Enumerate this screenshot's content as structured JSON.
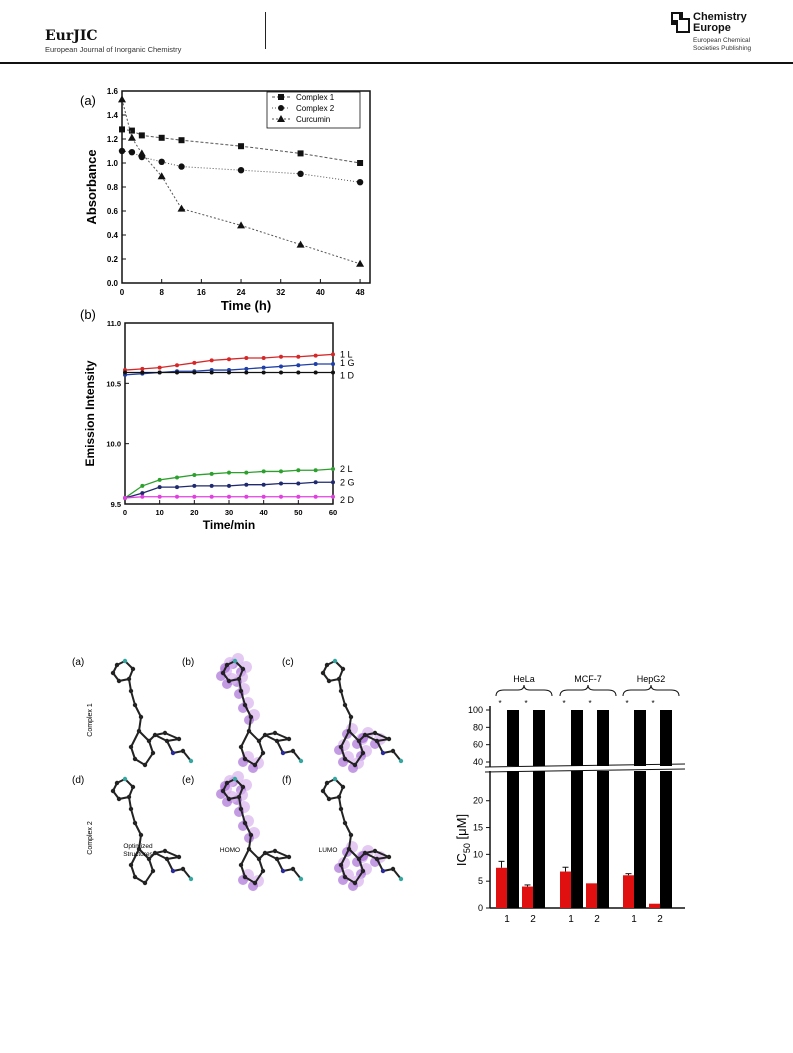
{
  "header": {
    "journal_short": "EurJIC",
    "journal_full": "European Journal of Inorganic Chemistry",
    "publisher_line1": "Chemistry",
    "publisher_line2": "Europe",
    "publisher_sub1": "European Chemical",
    "publisher_sub2": "Societies Publishing"
  },
  "figure_a": {
    "panel_label": "(a)",
    "chart_data": {
      "type": "line",
      "xlabel": "Time (h)",
      "ylabel": "Absorbance",
      "xlim": [
        0,
        50
      ],
      "ylim": [
        0.0,
        1.6
      ],
      "xticks": [
        "0",
        "8",
        "16",
        "24",
        "32",
        "40",
        "48"
      ],
      "yticks": [
        "0.0",
        "0.2",
        "0.4",
        "0.6",
        "0.8",
        "1.0",
        "1.2",
        "1.4",
        "1.6"
      ],
      "legend_position": "top-right",
      "series": [
        {
          "name": "Complex 1",
          "marker": "square",
          "x": [
            0,
            2,
            4,
            8,
            12,
            24,
            36,
            48
          ],
          "y": [
            1.28,
            1.27,
            1.23,
            1.21,
            1.19,
            1.14,
            1.08,
            1.0
          ]
        },
        {
          "name": "Complex 2",
          "marker": "circle",
          "x": [
            0,
            2,
            4,
            8,
            12,
            24,
            36,
            48
          ],
          "y": [
            1.1,
            1.09,
            1.05,
            1.01,
            0.97,
            0.94,
            0.91,
            0.84
          ]
        },
        {
          "name": "Curcumin",
          "marker": "triangle",
          "x": [
            0,
            2,
            4,
            8,
            12,
            24,
            36,
            48
          ],
          "y": [
            1.53,
            1.21,
            1.08,
            0.89,
            0.62,
            0.48,
            0.32,
            0.16
          ]
        }
      ]
    }
  },
  "figure_b": {
    "panel_label": "(b)",
    "chart_data": {
      "type": "line",
      "xlabel": "Time/min",
      "ylabel": "Emission Intensity",
      "xlim": [
        0,
        60
      ],
      "ylim": [
        9.5,
        11.0
      ],
      "xticks": [
        "0",
        "10",
        "20",
        "30",
        "40",
        "50",
        "60"
      ],
      "yticks": [
        "9.5",
        "10.0",
        "10.5",
        "11.0"
      ],
      "series": [
        {
          "name": "1 L",
          "color": "#d62728",
          "x": [
            0,
            5,
            10,
            15,
            20,
            25,
            30,
            35,
            40,
            45,
            50,
            55,
            60
          ],
          "y": [
            10.61,
            10.62,
            10.63,
            10.65,
            10.67,
            10.69,
            10.7,
            10.71,
            10.71,
            10.72,
            10.72,
            10.73,
            10.74
          ]
        },
        {
          "name": "1 G",
          "color": "#1f3fa8",
          "x": [
            0,
            5,
            10,
            15,
            20,
            25,
            30,
            35,
            40,
            45,
            50,
            55,
            60
          ],
          "y": [
            10.57,
            10.58,
            10.59,
            10.6,
            10.6,
            10.61,
            10.61,
            10.62,
            10.63,
            10.64,
            10.65,
            10.66,
            10.66
          ]
        },
        {
          "name": "1 D",
          "color": "#111111",
          "x": [
            0,
            5,
            10,
            15,
            20,
            25,
            30,
            35,
            40,
            45,
            50,
            55,
            60
          ],
          "y": [
            10.59,
            10.59,
            10.59,
            10.59,
            10.59,
            10.59,
            10.59,
            10.59,
            10.59,
            10.59,
            10.59,
            10.59,
            10.59
          ]
        },
        {
          "name": "2 L",
          "color": "#2ca02c",
          "x": [
            0,
            5,
            10,
            15,
            20,
            25,
            30,
            35,
            40,
            45,
            50,
            55,
            60
          ],
          "y": [
            9.55,
            9.65,
            9.7,
            9.72,
            9.74,
            9.75,
            9.76,
            9.76,
            9.77,
            9.77,
            9.78,
            9.78,
            9.79
          ]
        },
        {
          "name": "2 G",
          "color": "#1f2a6e",
          "x": [
            0,
            5,
            10,
            15,
            20,
            25,
            30,
            35,
            40,
            45,
            50,
            55,
            60
          ],
          "y": [
            9.55,
            9.59,
            9.64,
            9.64,
            9.65,
            9.65,
            9.65,
            9.66,
            9.66,
            9.67,
            9.67,
            9.68,
            9.68
          ]
        },
        {
          "name": "2 D",
          "color": "#e040e0",
          "x": [
            0,
            5,
            10,
            15,
            20,
            25,
            30,
            35,
            40,
            45,
            50,
            55,
            60
          ],
          "y": [
            9.55,
            9.56,
            9.56,
            9.56,
            9.56,
            9.56,
            9.56,
            9.56,
            9.56,
            9.56,
            9.56,
            9.56,
            9.56
          ]
        }
      ]
    }
  },
  "figure_dft": {
    "panels": [
      "(a)",
      "(b)",
      "(c)",
      "(d)",
      "(e)",
      "(f)"
    ],
    "row_labels": [
      "Complex 1",
      "Complex 2"
    ],
    "captions": [
      "Optimized Structures",
      "HOMO",
      "LUMO"
    ],
    "colors": {
      "bond": "#222222",
      "orbital": "#9b59d0",
      "orbital_light": "#d8b3ee",
      "halogen": "#33a8a0",
      "nitrogen": "#2a2aa0"
    }
  },
  "figure_ic50": {
    "chart_data": {
      "type": "bar",
      "ylabel_main": "IC",
      "ylabel_sub": "50",
      "ylabel_unit": " [μM]",
      "axis_break": true,
      "groups": [
        "HeLa",
        "MCF-7",
        "HepG2"
      ],
      "categories": [
        "1",
        "2"
      ],
      "series": [
        {
          "color": "#e01010",
          "values": [
            [
              7.5,
              4.0
            ],
            [
              6.8,
              4.6
            ],
            [
              6.1,
              0.8
            ]
          ],
          "errors": [
            [
              1.2,
              0.3
            ],
            [
              0.8,
              0
            ],
            [
              0.3,
              0
            ]
          ]
        },
        {
          "color": "#000000",
          "values": [
            [
              100,
              100
            ],
            [
              100,
              100
            ],
            [
              100,
              100
            ]
          ]
        }
      ],
      "significance": "*",
      "yticks_lower": [
        "0",
        "5",
        "10",
        "15",
        "20"
      ],
      "yticks_upper": [
        "40",
        "60",
        "80",
        "100"
      ]
    }
  }
}
